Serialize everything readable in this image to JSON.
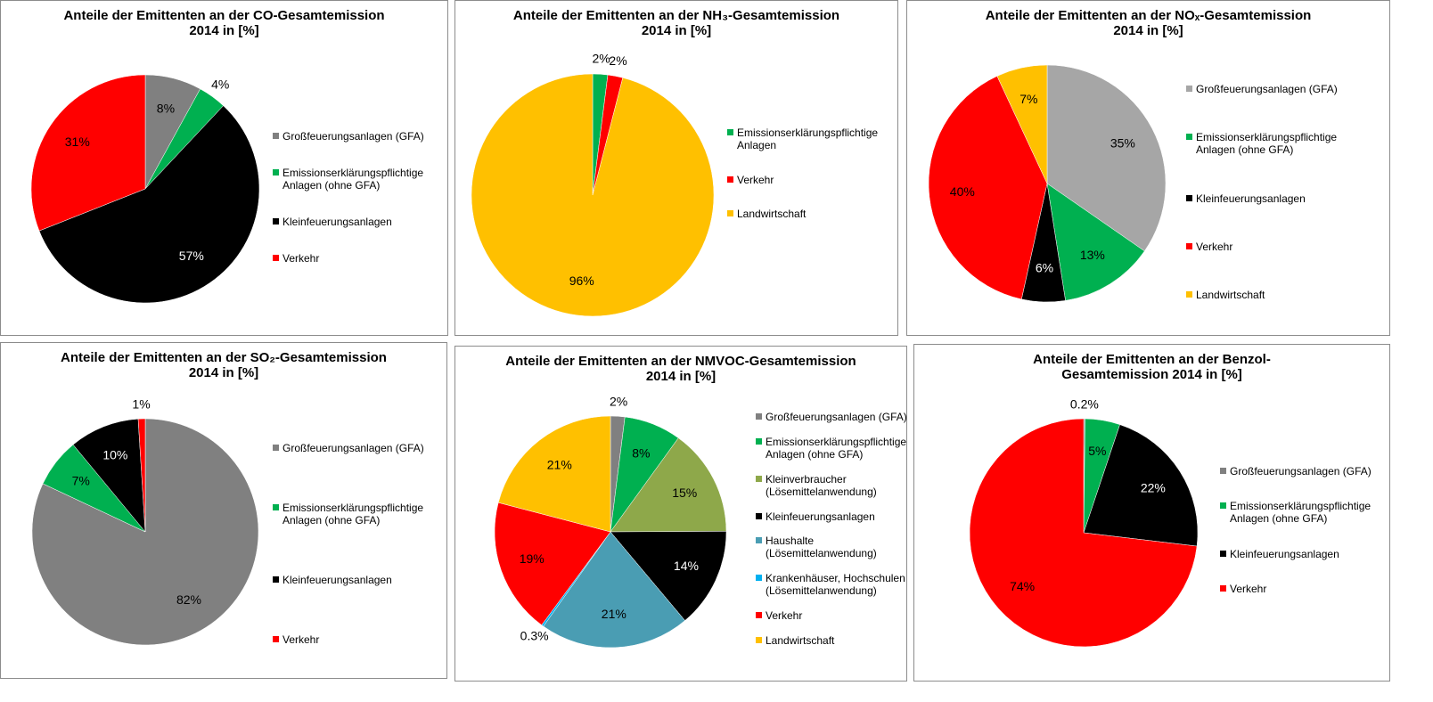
{
  "chart_data": [
    {
      "type": "pie",
      "title": [
        "Anteile der Emittenten an der CO-Gesamtemission",
        "2014 in [%]"
      ],
      "categories": [
        "Großfeuerungsanlagen (GFA)",
        "Emissionserklärungspflichtige Anlagen (ohne GFA)",
        "Kleinfeuerungsanlagen",
        "Verkehr"
      ],
      "values": [
        8,
        4,
        57,
        31
      ],
      "value_labels": [
        "8%",
        "4%",
        "57%",
        "31%"
      ],
      "colors": [
        "#808080",
        "#00b050",
        "#000000",
        "#ff0000"
      ]
    },
    {
      "type": "pie",
      "title": [
        "Anteile der Emittenten an der NH₃-Gesamtemission",
        "2014 in [%]"
      ],
      "categories": [
        "Emissionserklärungspflichtige Anlagen",
        "Verkehr",
        "Landwirtschaft"
      ],
      "values": [
        2,
        2,
        96
      ],
      "value_labels": [
        "2%",
        "2%",
        "96%"
      ],
      "colors": [
        "#00b050",
        "#ff0000",
        "#ffc000"
      ]
    },
    {
      "type": "pie",
      "title": [
        "Anteile der Emittenten an der  NOₓ-Gesamtemission",
        "2014 in [%]"
      ],
      "categories": [
        "Großfeuerungsanlagen (GFA)",
        "Emissionserklärungspflichtige Anlagen (ohne GFA)",
        "Kleinfeuerungsanlagen",
        "Verkehr",
        "Landwirtschaft"
      ],
      "values": [
        35,
        13,
        6,
        40,
        7
      ],
      "value_labels": [
        "35%",
        "13%",
        "6%",
        "40%",
        "7%"
      ],
      "colors": [
        "#a6a6a6",
        "#00b050",
        "#000000",
        "#ff0000",
        "#ffc000"
      ]
    },
    {
      "type": "pie",
      "title": [
        "Anteile der Emittenten an der SO₂-Gesamtemission",
        "2014 in [%]"
      ],
      "categories": [
        "Großfeuerungsanlagen (GFA)",
        "Emissionserklärungspflichtige Anlagen (ohne GFA)",
        "Kleinfeuerungsanlagen",
        "Verkehr"
      ],
      "values": [
        82,
        7,
        10,
        1
      ],
      "value_labels": [
        "82%",
        "7%",
        "10%",
        "1%"
      ],
      "colors": [
        "#808080",
        "#00b050",
        "#000000",
        "#ff0000"
      ]
    },
    {
      "type": "pie",
      "title": [
        "Anteile der Emittenten an der NMVOC-Gesamtemission",
        "2014 in [%]"
      ],
      "categories": [
        "Großfeuerungsanlagen (GFA)",
        "Emissionserklärungspflichtige Anlagen (ohne GFA)",
        "Kleinverbraucher (Lösemittelanwendung)",
        "Kleinfeuerungsanlagen",
        "Haushalte (Lösemittelanwendung)",
        "Krankenhäuser, Hochschulen (Lösemittelanwendung)",
        "Verkehr",
        "Landwirtschaft"
      ],
      "values": [
        2,
        8,
        15,
        14,
        21,
        0.3,
        19,
        21
      ],
      "value_labels": [
        "2%",
        "8%",
        "15%",
        "14%",
        "21%",
        "0.3%",
        "19%",
        "21%"
      ],
      "colors": [
        "#808080",
        "#00b050",
        "#8ea84a",
        "#000000",
        "#4a9db3",
        "#00b0f0",
        "#ff0000",
        "#ffc000"
      ]
    },
    {
      "type": "pie",
      "title": [
        "Anteile der Emittenten an der Benzol-",
        "Gesamtemission 2014 in [%]"
      ],
      "categories": [
        "Großfeuerungsanlagen (GFA)",
        "Emissionserklärungspflichtige Anlagen (ohne GFA)",
        "Kleinfeuerungsanlagen",
        "Verkehr"
      ],
      "values": [
        0.2,
        5,
        22,
        74
      ],
      "value_labels": [
        "0.2%",
        "5%",
        "22%",
        "74%"
      ],
      "colors": [
        "#808080",
        "#00b050",
        "#000000",
        "#ff0000"
      ]
    }
  ]
}
